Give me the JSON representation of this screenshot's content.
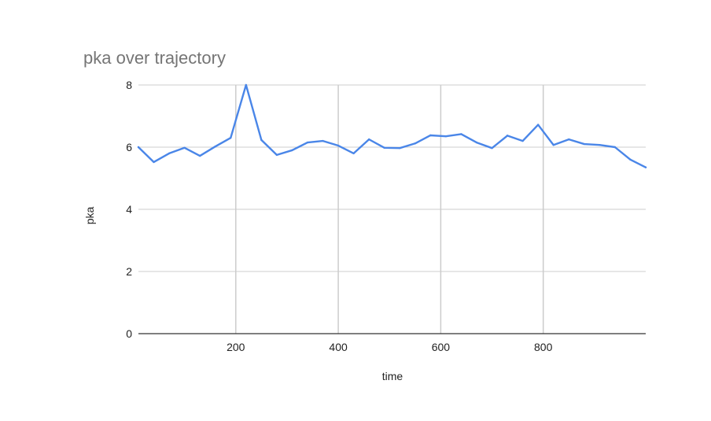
{
  "chart_data": {
    "type": "line",
    "title": "pka over trajectory",
    "xlabel": "time",
    "ylabel": "pka",
    "xlim": [
      10,
      1000
    ],
    "ylim": [
      0,
      8
    ],
    "x_ticks": [
      200,
      400,
      600,
      800
    ],
    "y_ticks": [
      0,
      2,
      4,
      6,
      8
    ],
    "grid": true,
    "legend": "none",
    "series": [
      {
        "color": "#4a86e8",
        "x": [
          10,
          40,
          70,
          100,
          130,
          160,
          190,
          220,
          250,
          280,
          310,
          340,
          370,
          400,
          430,
          460,
          490,
          520,
          550,
          580,
          610,
          640,
          670,
          700,
          730,
          760,
          790,
          820,
          850,
          880,
          910,
          940,
          970,
          1000
        ],
        "y": [
          6.0,
          5.52,
          5.8,
          5.98,
          5.72,
          6.02,
          6.3,
          8.0,
          6.23,
          5.75,
          5.9,
          6.15,
          6.2,
          6.05,
          5.8,
          6.25,
          5.98,
          5.97,
          6.12,
          6.38,
          6.35,
          6.42,
          6.15,
          5.97,
          6.37,
          6.2,
          6.72,
          6.07,
          6.25,
          6.1,
          6.07,
          6.0,
          5.6,
          5.35
        ]
      }
    ]
  }
}
